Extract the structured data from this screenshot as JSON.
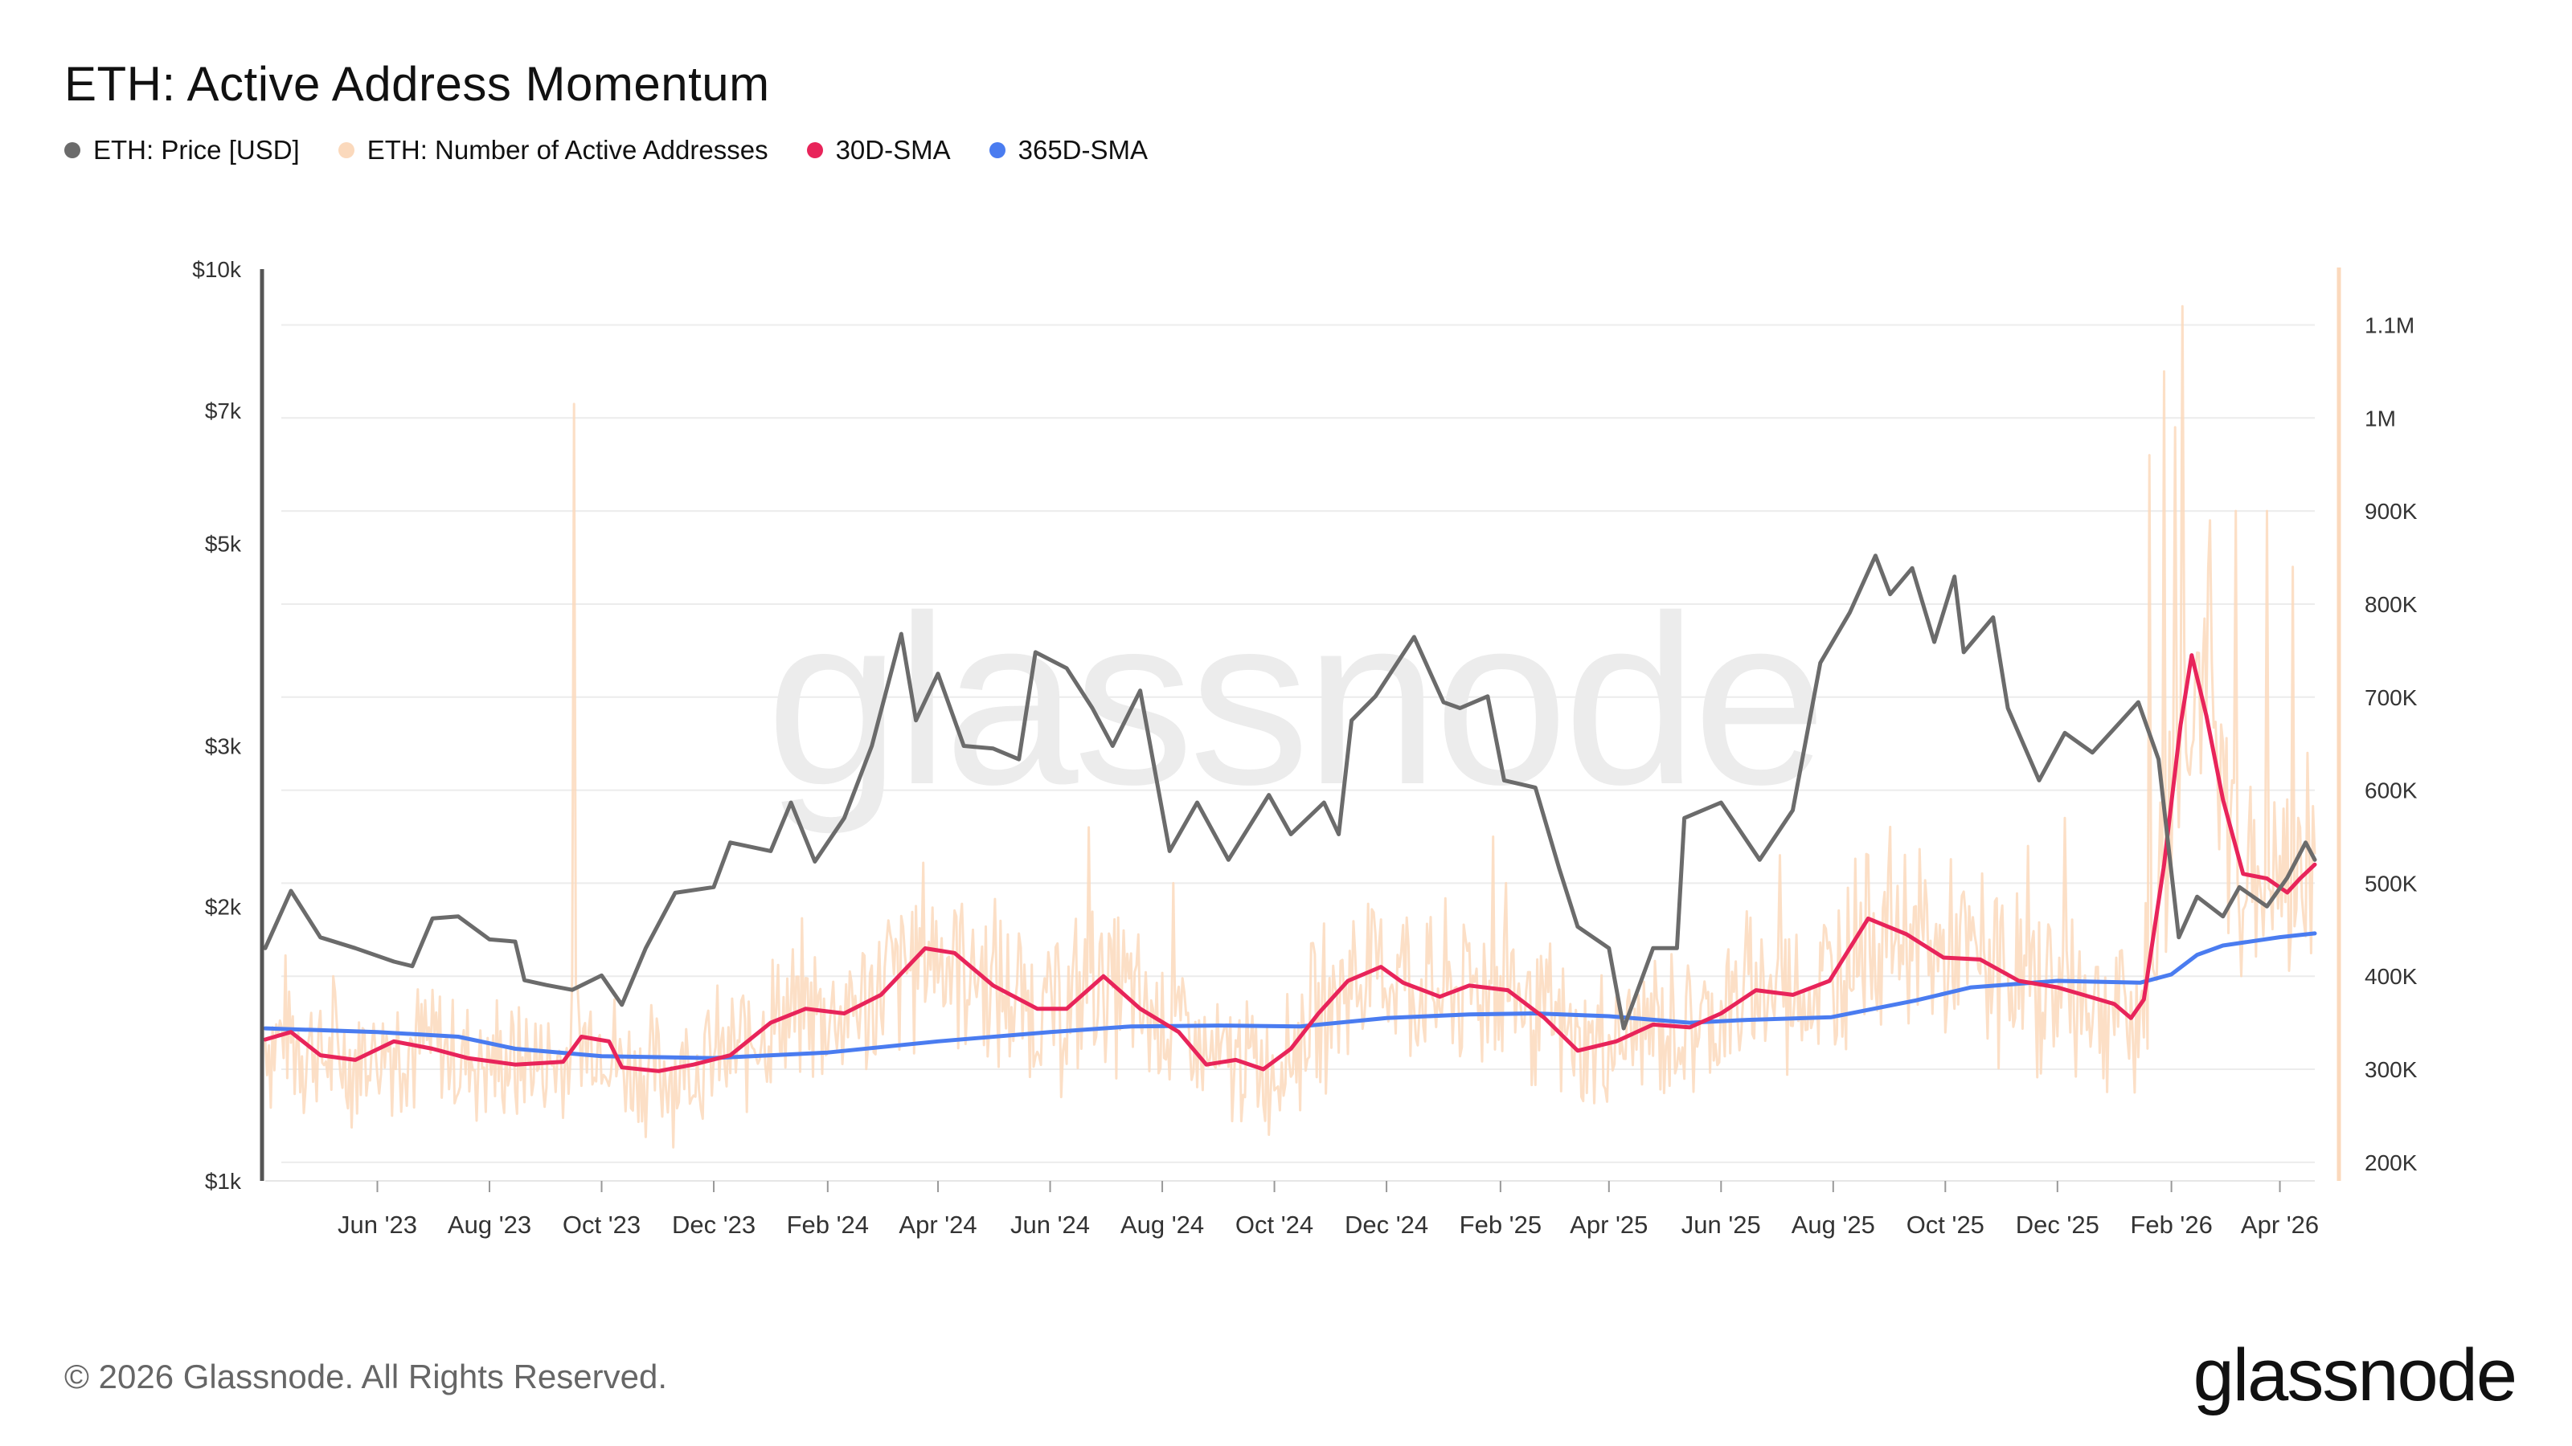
{
  "chart_data": {
    "type": "line",
    "title": "ETH: Active Address Momentum",
    "watermark": "glassnode",
    "footer": "© 2026 Glassnode. All Rights Reserved.",
    "logo_text": "glassnode",
    "legend": [
      {
        "name": "ETH: Price [USD]",
        "color": "#6b6b6b"
      },
      {
        "name": "ETH: Number of Active Addresses",
        "color": "#fbd9bc"
      },
      {
        "name": "30D-SMA",
        "color": "#e8245a"
      },
      {
        "name": "365D-SMA",
        "color": "#4a7cf0"
      }
    ],
    "x_start": "2023-04-01",
    "x_end": "2026-04-20",
    "x_ticks": [
      {
        "date": "2023-06-01",
        "label": "Jun '23"
      },
      {
        "date": "2023-08-01",
        "label": "Aug '23"
      },
      {
        "date": "2023-10-01",
        "label": "Oct '23"
      },
      {
        "date": "2023-12-01",
        "label": "Dec '23"
      },
      {
        "date": "2024-02-01",
        "label": "Feb '24"
      },
      {
        "date": "2024-04-01",
        "label": "Apr '24"
      },
      {
        "date": "2024-06-01",
        "label": "Jun '24"
      },
      {
        "date": "2024-08-01",
        "label": "Aug '24"
      },
      {
        "date": "2024-10-01",
        "label": "Oct '24"
      },
      {
        "date": "2024-12-01",
        "label": "Dec '24"
      },
      {
        "date": "2025-02-01",
        "label": "Feb '25"
      },
      {
        "date": "2025-04-01",
        "label": "Apr '25"
      },
      {
        "date": "2025-06-01",
        "label": "Jun '25"
      },
      {
        "date": "2025-08-01",
        "label": "Aug '25"
      },
      {
        "date": "2025-10-01",
        "label": "Oct '25"
      },
      {
        "date": "2025-12-01",
        "label": "Dec '25"
      },
      {
        "date": "2026-02-01",
        "label": "Feb '26"
      },
      {
        "date": "2026-04-01",
        "label": "Apr '26"
      }
    ],
    "y_left": {
      "scale": "log",
      "range": [
        1000,
        10000
      ],
      "ticks": [
        {
          "value": 1000,
          "label": "$1k"
        },
        {
          "value": 2000,
          "label": "$2k"
        },
        {
          "value": 3000,
          "label": "$3k"
        },
        {
          "value": 5000,
          "label": "$5k"
        },
        {
          "value": 7000,
          "label": "$7k"
        },
        {
          "value": 10000,
          "label": "$10k"
        }
      ]
    },
    "y_right": {
      "scale": "linear",
      "range": [
        180000,
        1160000
      ],
      "ticks": [
        {
          "value": 200000,
          "label": "200K"
        },
        {
          "value": 300000,
          "label": "300K"
        },
        {
          "value": 400000,
          "label": "400K"
        },
        {
          "value": 500000,
          "label": "500K"
        },
        {
          "value": 600000,
          "label": "600K"
        },
        {
          "value": 700000,
          "label": "700K"
        },
        {
          "value": 800000,
          "label": "800K"
        },
        {
          "value": 900000,
          "label": "900K"
        },
        {
          "value": 1000000,
          "label": "1M"
        },
        {
          "value": 1100000,
          "label": "1.1M"
        }
      ]
    },
    "series": [
      {
        "name": "ETH: Price [USD]",
        "axis": "left",
        "color": "#6b6b6b",
        "points": [
          [
            "2023-04-01",
            1800
          ],
          [
            "2023-04-15",
            2080
          ],
          [
            "2023-05-01",
            1850
          ],
          [
            "2023-05-20",
            1800
          ],
          [
            "2023-06-10",
            1740
          ],
          [
            "2023-06-20",
            1720
          ],
          [
            "2023-07-01",
            1940
          ],
          [
            "2023-07-15",
            1950
          ],
          [
            "2023-08-01",
            1840
          ],
          [
            "2023-08-15",
            1830
          ],
          [
            "2023-08-20",
            1660
          ],
          [
            "2023-09-01",
            1640
          ],
          [
            "2023-09-15",
            1620
          ],
          [
            "2023-10-01",
            1680
          ],
          [
            "2023-10-12",
            1560
          ],
          [
            "2023-10-25",
            1800
          ],
          [
            "2023-11-10",
            2070
          ],
          [
            "2023-12-01",
            2100
          ],
          [
            "2023-12-10",
            2350
          ],
          [
            "2024-01-01",
            2300
          ],
          [
            "2024-01-12",
            2600
          ],
          [
            "2024-01-25",
            2240
          ],
          [
            "2024-02-10",
            2500
          ],
          [
            "2024-02-25",
            3000
          ],
          [
            "2024-03-12",
            3980
          ],
          [
            "2024-03-20",
            3200
          ],
          [
            "2024-04-01",
            3600
          ],
          [
            "2024-04-15",
            3000
          ],
          [
            "2024-05-01",
            2980
          ],
          [
            "2024-05-15",
            2900
          ],
          [
            "2024-05-24",
            3800
          ],
          [
            "2024-06-10",
            3650
          ],
          [
            "2024-06-24",
            3300
          ],
          [
            "2024-07-05",
            3000
          ],
          [
            "2024-07-20",
            3450
          ],
          [
            "2024-08-05",
            2300
          ],
          [
            "2024-08-20",
            2600
          ],
          [
            "2024-09-06",
            2250
          ],
          [
            "2024-09-28",
            2650
          ],
          [
            "2024-10-10",
            2400
          ],
          [
            "2024-10-28",
            2600
          ],
          [
            "2024-11-05",
            2400
          ],
          [
            "2024-11-12",
            3200
          ],
          [
            "2024-11-25",
            3400
          ],
          [
            "2024-12-16",
            3950
          ],
          [
            "2025-01-01",
            3350
          ],
          [
            "2025-01-10",
            3300
          ],
          [
            "2025-01-25",
            3400
          ],
          [
            "2025-02-03",
            2750
          ],
          [
            "2025-02-20",
            2700
          ],
          [
            "2025-03-05",
            2200
          ],
          [
            "2025-03-15",
            1900
          ],
          [
            "2025-04-01",
            1800
          ],
          [
            "2025-04-09",
            1470
          ],
          [
            "2025-04-25",
            1800
          ],
          [
            "2025-05-08",
            1800
          ],
          [
            "2025-05-12",
            2500
          ],
          [
            "2025-06-01",
            2600
          ],
          [
            "2025-06-22",
            2250
          ],
          [
            "2025-07-10",
            2550
          ],
          [
            "2025-07-25",
            3700
          ],
          [
            "2025-08-10",
            4200
          ],
          [
            "2025-08-24",
            4850
          ],
          [
            "2025-09-01",
            4400
          ],
          [
            "2025-09-13",
            4700
          ],
          [
            "2025-09-25",
            3900
          ],
          [
            "2025-10-06",
            4600
          ],
          [
            "2025-10-11",
            3800
          ],
          [
            "2025-10-27",
            4150
          ],
          [
            "2025-11-04",
            3300
          ],
          [
            "2025-11-21",
            2750
          ],
          [
            "2025-12-05",
            3100
          ],
          [
            "2025-12-20",
            2950
          ],
          [
            "2026-01-05",
            3200
          ],
          [
            "2026-01-14",
            3350
          ],
          [
            "2026-01-25",
            2900
          ],
          [
            "2026-02-05",
            1850
          ],
          [
            "2026-02-15",
            2050
          ],
          [
            "2026-03-01",
            1950
          ],
          [
            "2026-03-10",
            2100
          ],
          [
            "2026-03-25",
            2000
          ],
          [
            "2026-04-05",
            2150
          ],
          [
            "2026-04-15",
            2350
          ],
          [
            "2026-04-20",
            2250
          ]
        ]
      },
      {
        "name": "30D-SMA",
        "axis": "right",
        "color": "#e8245a",
        "points": [
          [
            "2023-04-01",
            332000
          ],
          [
            "2023-04-15",
            340000
          ],
          [
            "2023-05-01",
            315000
          ],
          [
            "2023-05-20",
            310000
          ],
          [
            "2023-06-10",
            330000
          ],
          [
            "2023-07-01",
            322000
          ],
          [
            "2023-07-20",
            312000
          ],
          [
            "2023-08-15",
            305000
          ],
          [
            "2023-09-10",
            308000
          ],
          [
            "2023-09-20",
            335000
          ],
          [
            "2023-10-05",
            330000
          ],
          [
            "2023-10-12",
            302000
          ],
          [
            "2023-11-01",
            298000
          ],
          [
            "2023-11-20",
            305000
          ],
          [
            "2023-12-10",
            315000
          ],
          [
            "2024-01-01",
            350000
          ],
          [
            "2024-01-20",
            365000
          ],
          [
            "2024-02-10",
            360000
          ],
          [
            "2024-03-01",
            380000
          ],
          [
            "2024-03-25",
            430000
          ],
          [
            "2024-04-10",
            425000
          ],
          [
            "2024-05-01",
            390000
          ],
          [
            "2024-05-25",
            365000
          ],
          [
            "2024-06-10",
            365000
          ],
          [
            "2024-06-30",
            400000
          ],
          [
            "2024-07-20",
            365000
          ],
          [
            "2024-08-10",
            340000
          ],
          [
            "2024-08-25",
            305000
          ],
          [
            "2024-09-10",
            310000
          ],
          [
            "2024-09-25",
            300000
          ],
          [
            "2024-10-10",
            322000
          ],
          [
            "2024-10-25",
            360000
          ],
          [
            "2024-11-10",
            395000
          ],
          [
            "2024-11-28",
            410000
          ],
          [
            "2024-12-10",
            393000
          ],
          [
            "2024-12-30",
            378000
          ],
          [
            "2025-01-15",
            390000
          ],
          [
            "2025-02-05",
            385000
          ],
          [
            "2025-02-25",
            355000
          ],
          [
            "2025-03-15",
            320000
          ],
          [
            "2025-04-05",
            330000
          ],
          [
            "2025-04-25",
            348000
          ],
          [
            "2025-05-15",
            345000
          ],
          [
            "2025-06-01",
            360000
          ],
          [
            "2025-06-20",
            385000
          ],
          [
            "2025-07-10",
            380000
          ],
          [
            "2025-07-30",
            395000
          ],
          [
            "2025-08-20",
            462000
          ],
          [
            "2025-09-10",
            445000
          ],
          [
            "2025-09-30",
            420000
          ],
          [
            "2025-10-20",
            418000
          ],
          [
            "2025-11-10",
            395000
          ],
          [
            "2025-12-01",
            388000
          ],
          [
            "2025-12-15",
            380000
          ],
          [
            "2026-01-01",
            370000
          ],
          [
            "2026-01-10",
            355000
          ],
          [
            "2026-01-17",
            375000
          ],
          [
            "2026-01-28",
            520000
          ],
          [
            "2026-02-06",
            670000
          ],
          [
            "2026-02-12",
            745000
          ],
          [
            "2026-02-20",
            680000
          ],
          [
            "2026-03-01",
            590000
          ],
          [
            "2026-03-12",
            510000
          ],
          [
            "2026-03-25",
            505000
          ],
          [
            "2026-04-05",
            490000
          ],
          [
            "2026-04-12",
            505000
          ],
          [
            "2026-04-20",
            520000
          ]
        ]
      },
      {
        "name": "365D-SMA",
        "axis": "right",
        "color": "#4a7cf0",
        "points": [
          [
            "2023-04-01",
            344000
          ],
          [
            "2023-06-01",
            340000
          ],
          [
            "2023-07-15",
            335000
          ],
          [
            "2023-08-15",
            322000
          ],
          [
            "2023-10-01",
            314000
          ],
          [
            "2023-12-01",
            312000
          ],
          [
            "2024-02-01",
            318000
          ],
          [
            "2024-04-01",
            330000
          ],
          [
            "2024-06-01",
            340000
          ],
          [
            "2024-07-15",
            346000
          ],
          [
            "2024-09-01",
            347000
          ],
          [
            "2024-10-15",
            346000
          ],
          [
            "2024-12-01",
            355000
          ],
          [
            "2025-01-15",
            359000
          ],
          [
            "2025-02-20",
            360000
          ],
          [
            "2025-04-01",
            357000
          ],
          [
            "2025-05-15",
            350000
          ],
          [
            "2025-06-15",
            353000
          ],
          [
            "2025-07-31",
            356000
          ],
          [
            "2025-09-15",
            374000
          ],
          [
            "2025-10-15",
            388000
          ],
          [
            "2025-12-01",
            395000
          ],
          [
            "2026-01-15",
            393000
          ],
          [
            "2026-02-01",
            402000
          ],
          [
            "2026-02-15",
            423000
          ],
          [
            "2026-03-01",
            433000
          ],
          [
            "2026-04-01",
            442000
          ],
          [
            "2026-04-20",
            446000
          ]
        ]
      },
      {
        "name": "ETH: Number of Active Addresses",
        "axis": "right",
        "color": "#fbd9bc",
        "style": "daily-spikes",
        "base_from": "30D-SMA",
        "noise_band": 0.18,
        "spikes": [
          [
            "2023-09-16",
            1015000
          ],
          [
            "2023-05-08",
            400000
          ],
          [
            "2024-03-05",
            460000
          ],
          [
            "2024-06-22",
            560000
          ],
          [
            "2024-08-07",
            500000
          ],
          [
            "2024-12-10",
            455000
          ],
          [
            "2025-01-28",
            550000
          ],
          [
            "2025-02-04",
            500000
          ],
          [
            "2025-07-03",
            530000
          ],
          [
            "2025-11-15",
            540000
          ],
          [
            "2025-12-05",
            570000
          ],
          [
            "2026-01-20",
            960000
          ],
          [
            "2026-01-28",
            1050000
          ],
          [
            "2026-02-03",
            990000
          ],
          [
            "2026-02-07",
            1120000
          ],
          [
            "2026-02-22",
            890000
          ],
          [
            "2026-03-08",
            900000
          ],
          [
            "2026-03-25",
            900000
          ],
          [
            "2026-04-08",
            840000
          ],
          [
            "2026-04-16",
            640000
          ]
        ]
      }
    ],
    "grid": true
  }
}
